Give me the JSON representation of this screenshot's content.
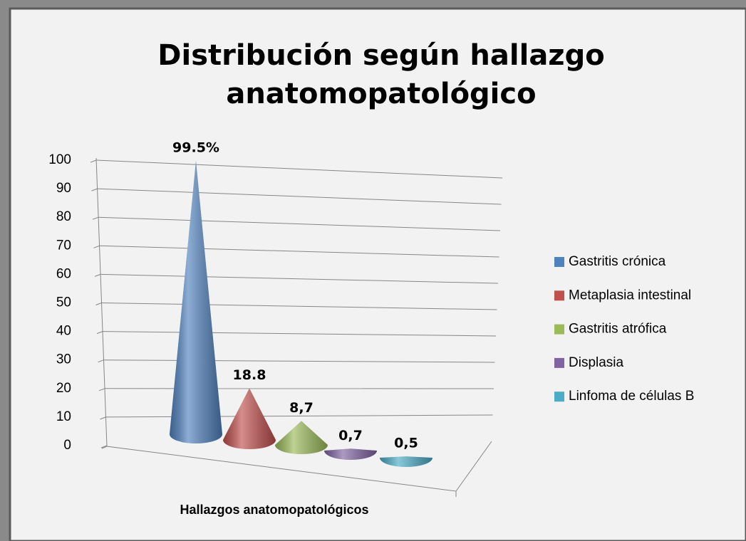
{
  "chart_data": {
    "type": "cone",
    "title": "Distribución según hallazgo",
    "subtitle": "anatomopatológico",
    "x_label": "Hallazgos anatomopatológicos",
    "series": [
      {
        "name": "Gastritis crónica",
        "color": "#4f81bd",
        "values": [
          99.5
        ],
        "value_labels": [
          "99.5%"
        ]
      },
      {
        "name": "Metaplasia intestinal",
        "color": "#c0504d",
        "values": [
          18.8
        ],
        "value_labels": [
          "18.8"
        ]
      },
      {
        "name": "Gastritis atrófica",
        "color": "#9bbb59",
        "values": [
          8.7
        ],
        "value_labels": [
          "8,7"
        ]
      },
      {
        "name": "Displasia",
        "color": "#8064a2",
        "values": [
          0.7
        ],
        "value_labels": [
          "0,7"
        ]
      },
      {
        "name": "Linfoma de células B",
        "color": "#4bacc6",
        "values": [
          0.5
        ],
        "value_labels": [
          "0,5"
        ]
      }
    ],
    "ylim": [
      0,
      100
    ],
    "yticks": [
      0,
      10,
      20,
      30,
      40,
      50,
      60,
      70,
      80,
      90,
      100
    ],
    "grid": true,
    "legend": "right"
  }
}
